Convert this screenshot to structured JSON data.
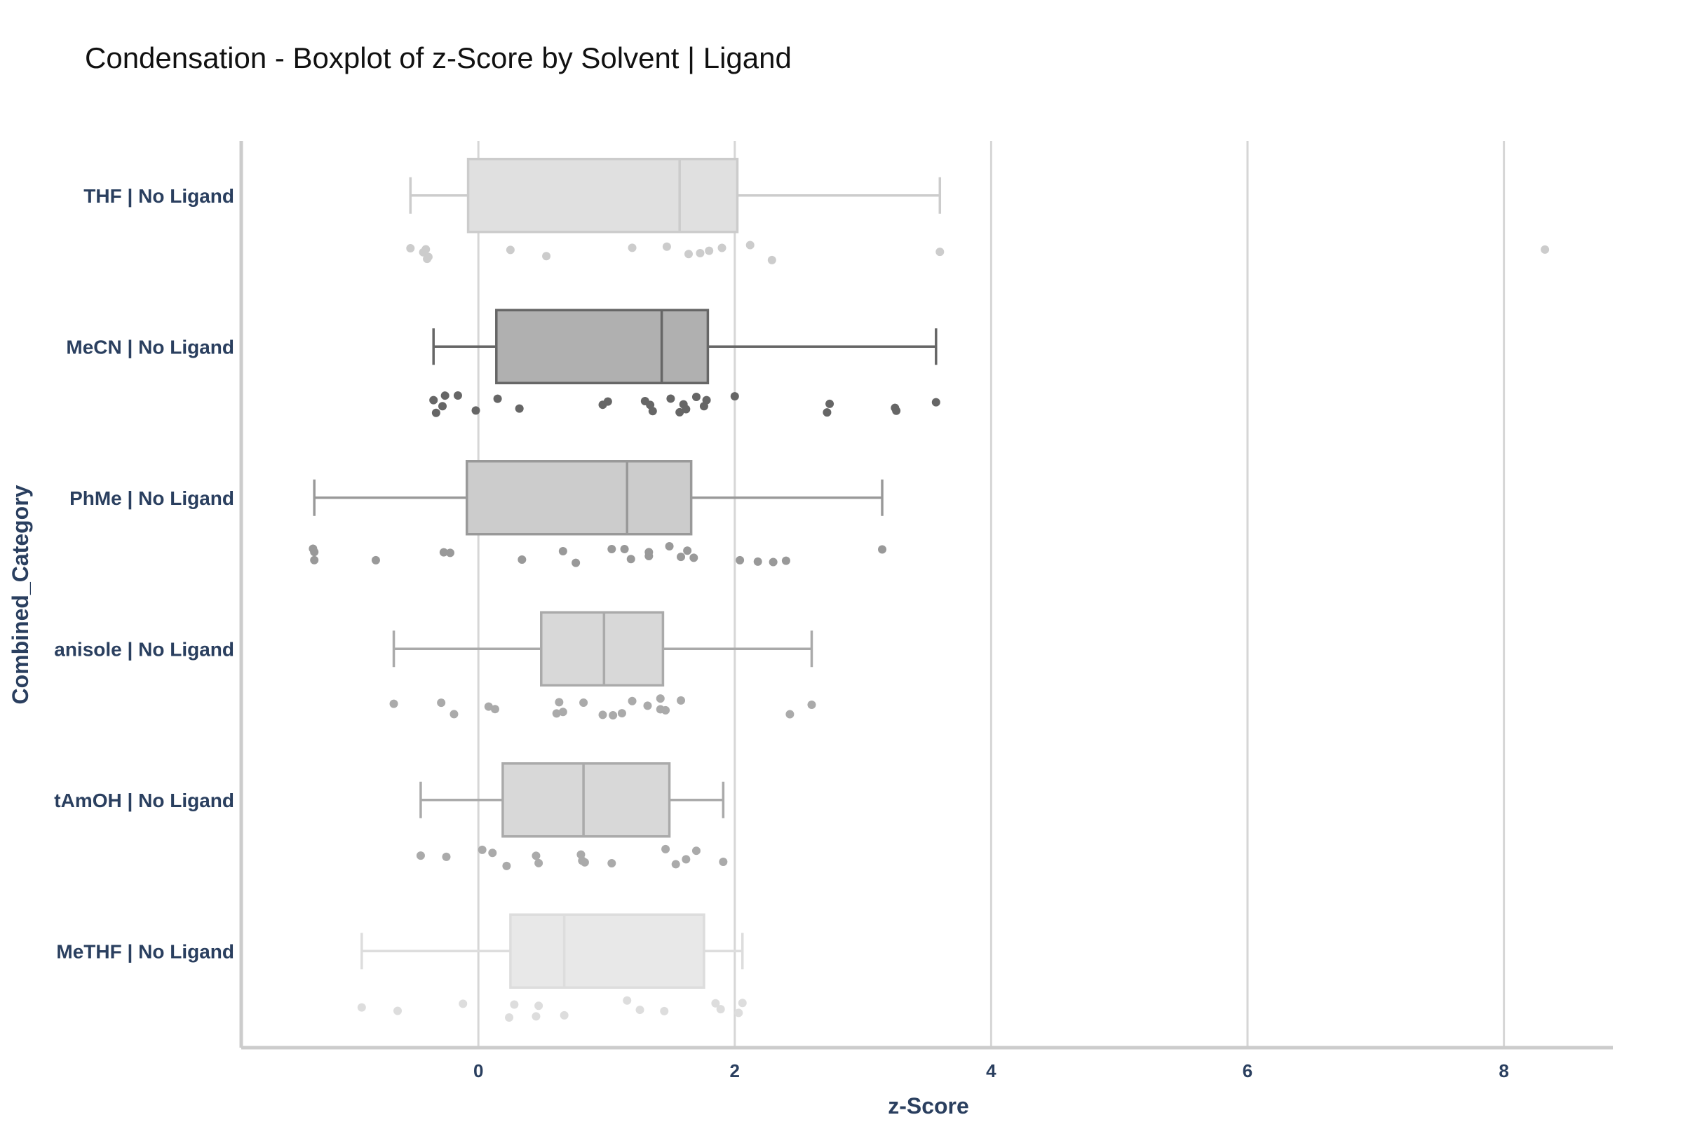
{
  "chart_data": {
    "type": "box",
    "title": "Condensation - Boxplot of z-Score by Solvent | Ligand",
    "xlabel": "z-Score",
    "ylabel": "Combined_Category",
    "xlim": [
      -1.85,
      8.85
    ],
    "xticks": [
      0,
      2,
      4,
      6,
      8
    ],
    "orientation": "horizontal",
    "grid": "vertical",
    "series": [
      {
        "category": "THF | No Ligand",
        "color": "#cccccc",
        "fill": "#e0e0e0",
        "whisker_low": -0.53,
        "q1": -0.08,
        "median": 1.57,
        "q3": 2.02,
        "whisker_high": 3.6,
        "points": [
          -0.53,
          -0.4,
          -0.43,
          -0.41,
          -0.39,
          0.25,
          0.53,
          1.2,
          1.47,
          1.64,
          1.73,
          1.8,
          1.9,
          2.12,
          2.29,
          3.6,
          8.32
        ]
      },
      {
        "category": "MeCN | No Ligand",
        "color": "#666666",
        "fill": "#b0b0b0",
        "whisker_low": -0.35,
        "q1": 0.14,
        "median": 1.43,
        "q3": 1.79,
        "whisker_high": 3.57,
        "points": [
          -0.35,
          -0.33,
          -0.28,
          -0.26,
          -0.16,
          -0.02,
          0.15,
          0.32,
          0.97,
          1.01,
          1.3,
          1.34,
          1.36,
          1.5,
          1.57,
          1.6,
          1.62,
          1.7,
          1.76,
          1.78,
          2.0,
          2.72,
          2.74,
          3.25,
          3.26,
          3.57
        ]
      },
      {
        "category": "PhMe | No Ligand",
        "color": "#999999",
        "fill": "#cccccc",
        "whisker_low": -1.28,
        "q1": -0.09,
        "median": 1.16,
        "q3": 1.66,
        "whisker_high": 3.15,
        "points": [
          -1.28,
          -1.29,
          -1.28,
          -0.8,
          -0.27,
          -0.22,
          0.34,
          0.66,
          0.76,
          1.04,
          1.14,
          1.19,
          1.33,
          1.33,
          1.49,
          1.58,
          1.63,
          1.68,
          2.04,
          2.18,
          2.3,
          2.4,
          3.15
        ]
      },
      {
        "category": "anisole | No Ligand",
        "color": "#aaaaaa",
        "fill": "#d8d8d8",
        "whisker_low": -0.66,
        "q1": 0.49,
        "median": 0.98,
        "q3": 1.44,
        "whisker_high": 2.6,
        "points": [
          -0.66,
          -0.29,
          -0.19,
          0.08,
          0.13,
          0.61,
          0.63,
          0.66,
          0.82,
          0.97,
          1.05,
          1.12,
          1.2,
          1.32,
          1.42,
          1.42,
          1.46,
          1.58,
          2.43,
          2.6
        ]
      },
      {
        "category": "tAmOH | No Ligand",
        "color": "#aaaaaa",
        "fill": "#d8d8d8",
        "whisker_low": -0.45,
        "q1": 0.19,
        "median": 0.82,
        "q3": 1.49,
        "whisker_high": 1.91,
        "points": [
          -0.45,
          -0.25,
          0.03,
          0.11,
          0.22,
          0.45,
          0.47,
          0.8,
          0.81,
          0.83,
          1.04,
          1.46,
          1.54,
          1.62,
          1.7,
          1.91
        ]
      },
      {
        "category": "MeTHF | No Ligand",
        "color": "#dddddd",
        "fill": "#e8e8e8",
        "whisker_low": -0.91,
        "q1": 0.25,
        "median": 0.67,
        "q3": 1.76,
        "whisker_high": 2.06,
        "points": [
          -0.91,
          -0.63,
          -0.12,
          0.24,
          0.28,
          0.45,
          0.47,
          0.67,
          1.16,
          1.26,
          1.45,
          1.85,
          1.89,
          2.03,
          2.06
        ]
      }
    ]
  }
}
